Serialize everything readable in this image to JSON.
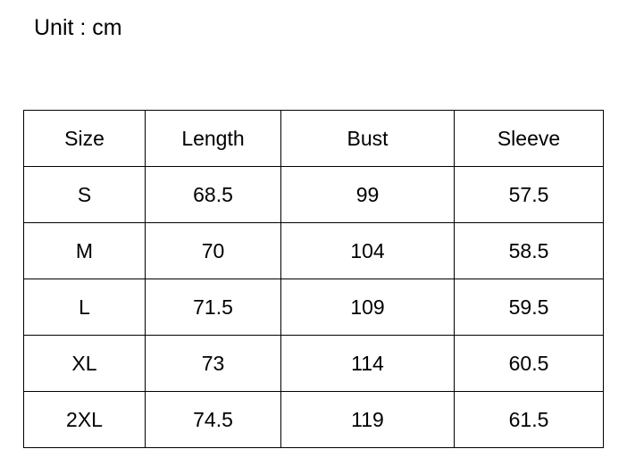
{
  "unit_label": "Unit : cm",
  "table": {
    "headers": [
      "Size",
      "Length",
      "Bust",
      "Sleeve"
    ],
    "rows": [
      [
        "S",
        "68.5",
        "99",
        "57.5"
      ],
      [
        "M",
        "70",
        "104",
        "58.5"
      ],
      [
        "L",
        "71.5",
        "109",
        "59.5"
      ],
      [
        "XL",
        "73",
        "114",
        "60.5"
      ],
      [
        "2XL",
        "74.5",
        "119",
        "61.5"
      ]
    ]
  }
}
